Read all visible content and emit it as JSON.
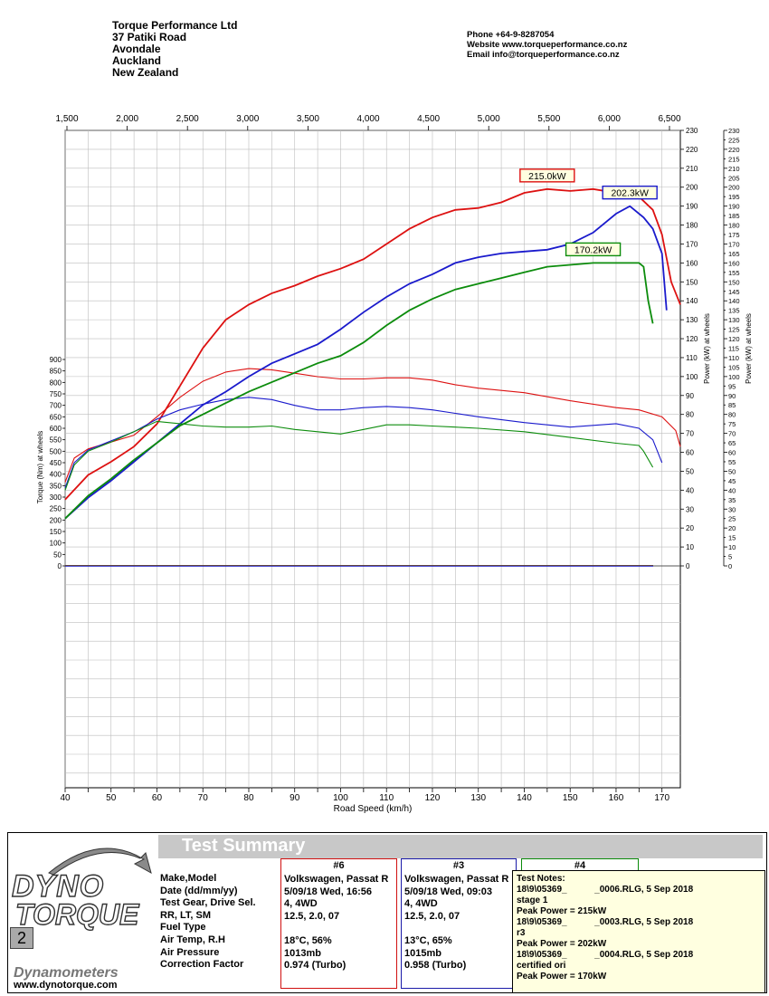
{
  "header": {
    "company": [
      "Torque Performance Ltd",
      "37 Patiki Road",
      "Avondale",
      "Auckland",
      "New Zealand"
    ],
    "contact": [
      "Phone +64-9-8287054",
      "Website  www.torqueperformance.co.nz",
      "Email  info@torqueperformance.co.nz"
    ]
  },
  "chart_data": {
    "type": "line",
    "xlabel": "Road Speed (km/h)",
    "xlim": [
      40,
      174
    ],
    "xticks": [
      40,
      50,
      60,
      70,
      80,
      90,
      100,
      110,
      120,
      130,
      140,
      150,
      160,
      170
    ],
    "top_axis": {
      "ticks": [
        "1,500",
        "2,000",
        "2,500",
        "3,000",
        "3,500",
        "4,000",
        "4,500",
        "5,000",
        "5,500",
        "6,000",
        "6,500"
      ]
    },
    "y_torque": {
      "label": "Torque (Nm) at wheels",
      "ylim": [
        0,
        900
      ],
      "ticks": [
        0,
        50,
        100,
        150,
        200,
        250,
        300,
        350,
        400,
        450,
        500,
        550,
        600,
        650,
        700,
        750,
        800,
        850,
        900
      ]
    },
    "y_power": {
      "label": "Power (kW) at wheels",
      "ylim": [
        0,
        230
      ]
    },
    "y_power_outer": {
      "label": "Power (kW) at wheels"
    },
    "grid": true,
    "series": [
      {
        "run": "#6",
        "color": "#dd1111",
        "peak_label": "215.0kW",
        "power": [
          [
            40,
            35
          ],
          [
            45,
            48
          ],
          [
            50,
            55
          ],
          [
            55,
            63
          ],
          [
            60,
            75
          ],
          [
            65,
            95
          ],
          [
            70,
            115
          ],
          [
            75,
            130
          ],
          [
            80,
            138
          ],
          [
            85,
            144
          ],
          [
            90,
            148
          ],
          [
            95,
            153
          ],
          [
            100,
            157
          ],
          [
            105,
            162
          ],
          [
            110,
            170
          ],
          [
            115,
            178
          ],
          [
            120,
            184
          ],
          [
            125,
            188
          ],
          [
            130,
            189
          ],
          [
            135,
            192
          ],
          [
            140,
            197
          ],
          [
            145,
            199
          ],
          [
            150,
            198
          ],
          [
            155,
            199
          ],
          [
            160,
            197
          ],
          [
            165,
            195
          ],
          [
            168,
            188
          ],
          [
            170,
            175
          ],
          [
            172,
            150
          ],
          [
            174,
            138
          ]
        ],
        "torque": [
          [
            40,
            365
          ],
          [
            42,
            470
          ],
          [
            45,
            510
          ],
          [
            50,
            540
          ],
          [
            55,
            570
          ],
          [
            60,
            650
          ],
          [
            65,
            735
          ],
          [
            70,
            805
          ],
          [
            75,
            845
          ],
          [
            80,
            860
          ],
          [
            85,
            855
          ],
          [
            90,
            840
          ],
          [
            95,
            825
          ],
          [
            100,
            815
          ],
          [
            105,
            815
          ],
          [
            110,
            820
          ],
          [
            115,
            820
          ],
          [
            120,
            810
          ],
          [
            125,
            790
          ],
          [
            130,
            775
          ],
          [
            140,
            755
          ],
          [
            150,
            720
          ],
          [
            160,
            690
          ],
          [
            165,
            680
          ],
          [
            170,
            650
          ],
          [
            173,
            590
          ],
          [
            174,
            520
          ]
        ]
      },
      {
        "run": "#3",
        "color": "#1a1acc",
        "peak_label": "202.3kW",
        "power": [
          [
            40,
            25
          ],
          [
            45,
            36
          ],
          [
            50,
            45
          ],
          [
            55,
            55
          ],
          [
            60,
            65
          ],
          [
            65,
            75
          ],
          [
            70,
            85
          ],
          [
            75,
            92
          ],
          [
            80,
            100
          ],
          [
            85,
            107
          ],
          [
            90,
            112
          ],
          [
            95,
            117
          ],
          [
            100,
            125
          ],
          [
            105,
            134
          ],
          [
            110,
            142
          ],
          [
            115,
            149
          ],
          [
            120,
            154
          ],
          [
            125,
            160
          ],
          [
            130,
            163
          ],
          [
            135,
            165
          ],
          [
            140,
            166
          ],
          [
            145,
            167
          ],
          [
            150,
            170
          ],
          [
            155,
            176
          ],
          [
            160,
            186
          ],
          [
            163,
            190
          ],
          [
            166,
            184
          ],
          [
            168,
            178
          ],
          [
            170,
            165
          ],
          [
            171,
            135
          ]
        ],
        "torque": [
          [
            40,
            340
          ],
          [
            42,
            450
          ],
          [
            45,
            505
          ],
          [
            50,
            545
          ],
          [
            55,
            585
          ],
          [
            60,
            640
          ],
          [
            65,
            680
          ],
          [
            70,
            705
          ],
          [
            75,
            725
          ],
          [
            80,
            735
          ],
          [
            85,
            725
          ],
          [
            90,
            700
          ],
          [
            95,
            680
          ],
          [
            100,
            680
          ],
          [
            105,
            690
          ],
          [
            110,
            695
          ],
          [
            115,
            690
          ],
          [
            120,
            680
          ],
          [
            125,
            665
          ],
          [
            130,
            650
          ],
          [
            140,
            625
          ],
          [
            150,
            605
          ],
          [
            160,
            620
          ],
          [
            165,
            600
          ],
          [
            168,
            550
          ],
          [
            170,
            450
          ]
        ]
      },
      {
        "run": "#4",
        "color": "#0c8c0c",
        "peak_label": "170.2kW",
        "power": [
          [
            40,
            25
          ],
          [
            45,
            37
          ],
          [
            50,
            46
          ],
          [
            55,
            56
          ],
          [
            60,
            65
          ],
          [
            65,
            74
          ],
          [
            70,
            80
          ],
          [
            75,
            86
          ],
          [
            80,
            92
          ],
          [
            85,
            97
          ],
          [
            90,
            102
          ],
          [
            95,
            107
          ],
          [
            100,
            111
          ],
          [
            105,
            118
          ],
          [
            110,
            127
          ],
          [
            115,
            135
          ],
          [
            120,
            141
          ],
          [
            125,
            146
          ],
          [
            130,
            149
          ],
          [
            135,
            152
          ],
          [
            140,
            155
          ],
          [
            145,
            158
          ],
          [
            150,
            159
          ],
          [
            155,
            160
          ],
          [
            160,
            160
          ],
          [
            165,
            160
          ],
          [
            166,
            158
          ],
          [
            167,
            140
          ],
          [
            168,
            128
          ]
        ],
        "torque": [
          [
            40,
            330
          ],
          [
            42,
            440
          ],
          [
            45,
            500
          ],
          [
            50,
            540
          ],
          [
            55,
            585
          ],
          [
            60,
            630
          ],
          [
            65,
            620
          ],
          [
            70,
            610
          ],
          [
            75,
            605
          ],
          [
            80,
            605
          ],
          [
            85,
            610
          ],
          [
            90,
            595
          ],
          [
            95,
            585
          ],
          [
            100,
            575
          ],
          [
            105,
            595
          ],
          [
            110,
            615
          ],
          [
            115,
            615
          ],
          [
            120,
            610
          ],
          [
            125,
            605
          ],
          [
            130,
            600
          ],
          [
            140,
            585
          ],
          [
            150,
            560
          ],
          [
            160,
            535
          ],
          [
            165,
            525
          ],
          [
            166,
            500
          ],
          [
            168,
            430
          ]
        ]
      }
    ]
  },
  "summary": {
    "title": "Test Summary",
    "logo": {
      "line1": "DYNO",
      "line2": "TORQUE",
      "badge": "2",
      "sub": "Dynamometers",
      "url": "www.dynotorque.com"
    },
    "rows": [
      "Make,Model",
      "Date (dd/mm/yy)",
      "Test Gear, Drive Sel.",
      "RR, LT, SM",
      "Fuel Type",
      "Air Temp, R.H",
      "Air Pressure",
      "Correction Factor"
    ],
    "runs": [
      {
        "id": "#6",
        "values": [
          "Volkswagen, Passat R",
          "5/09/18 Wed, 16:56",
          "4, 4WD",
          "12.5,     2.0,    07",
          "",
          "18°C,      56%",
          "1013mb",
          "0.974 (Turbo)"
        ]
      },
      {
        "id": "#3",
        "values": [
          "Volkswagen, Passat R",
          "5/09/18 Wed, 09:03",
          "4, 4WD",
          "12.5,     2.0,    07",
          "",
          "13°C,      65%",
          "1015mb",
          "0.958 (Turbo)"
        ]
      },
      {
        "id": "#4",
        "values": []
      }
    ],
    "notes": [
      "Test Notes:",
      "18\\9\\05369_           _0006.RLG, 5 Sep 2018",
      "stage 1",
      "Peak Power = 215kW",
      "18\\9\\05369_           _0003.RLG, 5 Sep 2018",
      "r3",
      "Peak Power = 202kW",
      "18\\9\\05369_           _0004.RLG, 5 Sep 2018",
      "certified ori",
      "Peak Power = 170kW"
    ]
  }
}
